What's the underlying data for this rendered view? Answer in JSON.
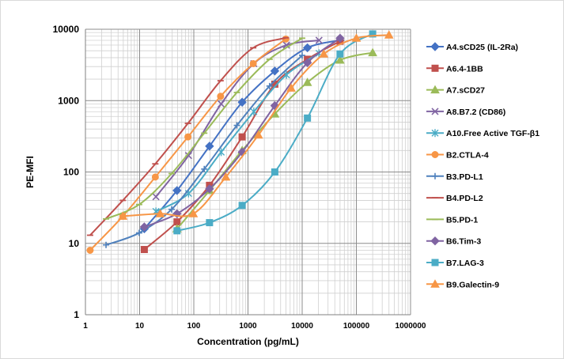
{
  "chart_data": {
    "type": "scatter",
    "title": "",
    "xlabel": "Concentration (pg/mL)",
    "ylabel": "PE-MFI",
    "xscale": "log",
    "yscale": "log",
    "xlim": [
      1,
      1000000
    ],
    "ylim": [
      1,
      10000
    ],
    "grid": true,
    "legend_position": "right",
    "x_tick_labels": [
      "1",
      "10",
      "100",
      "1000",
      "10000",
      "100000",
      "1000000"
    ],
    "y_tick_labels": [
      "1",
      "10",
      "100",
      "1000",
      "10000"
    ],
    "series": [
      {
        "name": "A4.sCD25 (IL-2Ra)",
        "color": "#4472c4",
        "marker": "diamond",
        "points": [
          [
            12.2,
            16
          ],
          [
            49,
            55
          ],
          [
            195,
            230
          ],
          [
            780,
            950
          ],
          [
            3125,
            2600
          ],
          [
            12500,
            5500
          ],
          [
            50000,
            7000
          ]
        ]
      },
      {
        "name": "A6.4-1BB",
        "color": "#c0504d",
        "marker": "square",
        "points": [
          [
            12.2,
            8.2
          ],
          [
            49,
            20
          ],
          [
            195,
            65
          ],
          [
            780,
            310
          ],
          [
            3125,
            1700
          ],
          [
            12500,
            3800
          ],
          [
            50000,
            6800
          ]
        ]
      },
      {
        "name": "A7.sCD27",
        "color": "#9bbb59",
        "marker": "triangle",
        "points": [
          [
            49,
            16
          ],
          [
            195,
            55
          ],
          [
            780,
            200
          ],
          [
            3125,
            650
          ],
          [
            12500,
            1800
          ],
          [
            50000,
            3700
          ],
          [
            200000,
            4700
          ]
        ]
      },
      {
        "name": "A8.B7.2 (CD86)",
        "color": "#8064a2",
        "marker": "x",
        "points": [
          [
            20,
            45
          ],
          [
            80,
            170
          ],
          [
            320,
            900
          ],
          [
            1280,
            3300
          ],
          [
            5120,
            6000
          ],
          [
            20480,
            7000
          ]
        ]
      },
      {
        "name": "A10.Free Active TGF-β1",
        "color": "#4bacc6",
        "marker": "asterisk",
        "points": [
          [
            20,
            28
          ],
          [
            80,
            50
          ],
          [
            320,
            190
          ],
          [
            1280,
            700
          ],
          [
            5120,
            2300
          ],
          [
            20480,
            4600
          ]
        ]
      },
      {
        "name": "B2.CTLA-4",
        "color": "#f79646",
        "marker": "circle",
        "points": [
          [
            1.22,
            8
          ],
          [
            4.9,
            24
          ],
          [
            19.5,
            85
          ],
          [
            78,
            310
          ],
          [
            312,
            1150
          ],
          [
            1250,
            3300
          ],
          [
            5000,
            7300
          ]
        ]
      },
      {
        "name": "B3.PD-L1",
        "color": "#4f81bd",
        "marker": "plus",
        "points": [
          [
            2.4,
            9.5
          ],
          [
            9.8,
            14
          ],
          [
            39,
            30
          ],
          [
            156,
            110
          ],
          [
            625,
            450
          ],
          [
            2500,
            1600
          ],
          [
            10000,
            4300
          ]
        ]
      },
      {
        "name": "B4.PD-L2",
        "color": "#c0504d",
        "marker": "dash",
        "points": [
          [
            1.22,
            13
          ],
          [
            4.9,
            40
          ],
          [
            19.5,
            130
          ],
          [
            78,
            480
          ],
          [
            312,
            1900
          ],
          [
            1250,
            5500
          ],
          [
            5000,
            7600
          ]
        ]
      },
      {
        "name": "B5.PD-1",
        "color": "#9bbb59",
        "marker": "dash",
        "points": [
          [
            2.4,
            22
          ],
          [
            9.8,
            35
          ],
          [
            39,
            95
          ],
          [
            156,
            350
          ],
          [
            625,
            1300
          ],
          [
            2500,
            3800
          ],
          [
            10000,
            7500
          ]
        ]
      },
      {
        "name": "B6.Tim-3",
        "color": "#8064a2",
        "marker": "diamond",
        "points": [
          [
            12.2,
            17
          ],
          [
            49,
            26
          ],
          [
            195,
            58
          ],
          [
            780,
            190
          ],
          [
            3125,
            850
          ],
          [
            12500,
            3400
          ],
          [
            50000,
            7500
          ]
        ]
      },
      {
        "name": "B7.LAG-3",
        "color": "#4bacc6",
        "marker": "square",
        "points": [
          [
            49,
            15
          ],
          [
            195,
            19.5
          ],
          [
            780,
            34
          ],
          [
            3125,
            100
          ],
          [
            12500,
            570
          ],
          [
            50000,
            4500
          ],
          [
            200000,
            8600
          ]
        ]
      },
      {
        "name": "B9.Galectin-9",
        "color": "#f79646",
        "marker": "triangle",
        "points": [
          [
            4.9,
            24
          ],
          [
            24,
            26
          ],
          [
            98,
            26
          ],
          [
            390,
            85
          ],
          [
            1560,
            330
          ],
          [
            6250,
            1500
          ],
          [
            25000,
            4500
          ],
          [
            100000,
            7500
          ],
          [
            400000,
            8300
          ]
        ]
      }
    ]
  }
}
